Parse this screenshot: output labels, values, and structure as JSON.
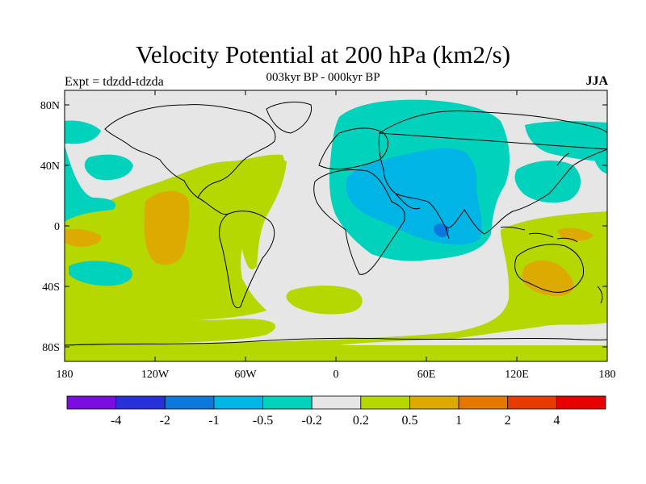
{
  "title": "Velocity Potential at 200 hPa (km2/s)",
  "subtitle": "003kyr BP - 000kyr BP",
  "left_string": "Expt = tdzdd-tdzda",
  "season": "JJA",
  "map": {
    "projection": "cylindrical-equidistant",
    "lon_range": [
      -180,
      180
    ],
    "lat_range": [
      -90,
      90
    ],
    "lat_ticks": [
      "80N",
      "40N",
      "0",
      "40S",
      "80S"
    ],
    "lon_ticks": [
      "180",
      "120W",
      "60W",
      "0",
      "60E",
      "120E",
      "180"
    ],
    "field_description": "Positive anomalies over the Americas, Atlantic and Australia; negative anomalies over Africa, Europe, Asia and Indian Ocean"
  },
  "colorbar": {
    "labels": [
      "-4",
      "-2",
      "-1",
      "-0.5",
      "-0.2",
      "0.2",
      "0.5",
      "1",
      "2",
      "4"
    ],
    "colors": [
      "#7a0ee0",
      "#2830d8",
      "#0a78dc",
      "#00b4e6",
      "#00d2bc",
      "#e6e6e6",
      "#b4d800",
      "#dcaa00",
      "#e67800",
      "#e63c00",
      "#e60000"
    ]
  },
  "fill_colors": {
    "neutral": "#e6e6e6",
    "neg_02": "#00d2bc",
    "neg_05": "#00b4e6",
    "neg_1": "#0a78dc",
    "pos_02": "#b4d800",
    "pos_05": "#dcaa00"
  }
}
